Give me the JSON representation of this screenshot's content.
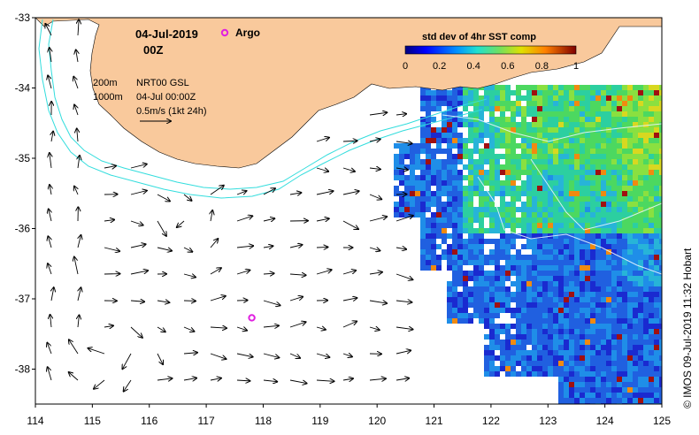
{
  "header": {
    "date": "04-Jul-2019",
    "time": "00Z",
    "argo_label": "Argo"
  },
  "legend": {
    "contour_200": "200m",
    "contour_1000": "1000m",
    "product": "NRT00 GSL",
    "timestamp": "04-Jul 00:00Z",
    "vector_scale": "0.5m/s (1kt 24h)"
  },
  "colorbar": {
    "title": "std dev of 4hr SST comp",
    "ticks": [
      "0",
      "0.2",
      "0.4",
      "0.6",
      "0.8",
      "1"
    ]
  },
  "axes": {
    "lon_ticks": [
      "114",
      "115",
      "116",
      "117",
      "118",
      "119",
      "120",
      "121",
      "122",
      "123",
      "124",
      "125"
    ],
    "lat_ticks": [
      "-33",
      "-34",
      "-35",
      "-36",
      "-37",
      "-38"
    ]
  },
  "credit": "© IMOS 09-Jul-2019 11:32 Hobart",
  "colors": {
    "land": "#f9c99c",
    "argo": "#e020e0",
    "contour": "#33dddd",
    "arrow": "#000000"
  },
  "argo_float": {
    "lon": 117.8,
    "lat": -37.27
  },
  "map_extent": {
    "lon": [
      114,
      125
    ],
    "lat": [
      -38.5,
      -33
    ]
  }
}
